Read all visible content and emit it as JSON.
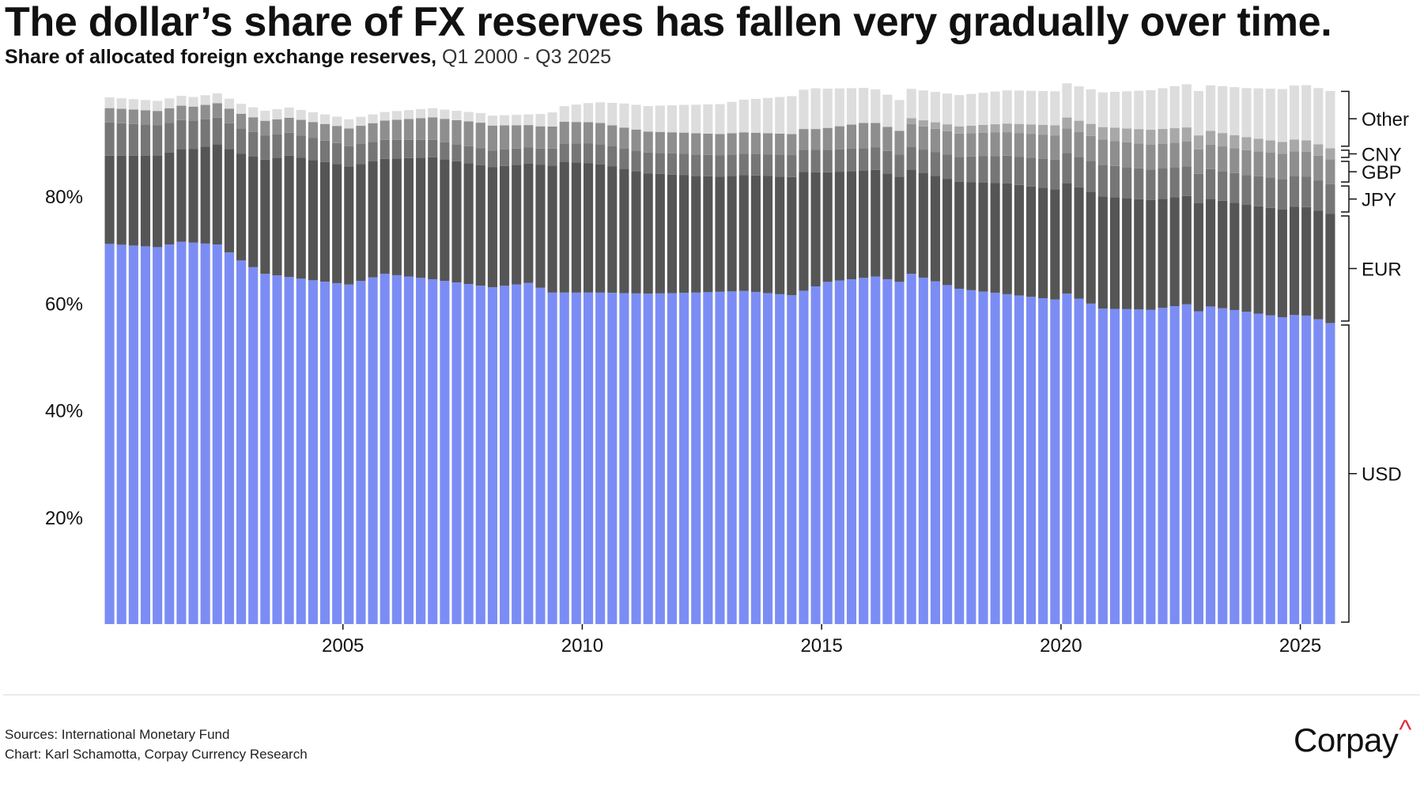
{
  "title": "The dollar’s share of FX reserves has fallen very gradually over time.",
  "subtitle_bold": "Share of allocated foreign exchange reserves,",
  "subtitle_light": "Q1 2000 - Q3 2025",
  "sources_line1": "Sources: International Monetary Fund",
  "sources_line2": "Chart: Karl Schamotta, Corpay Currency Research",
  "logo_text": "Corpay",
  "logo_mark": "^",
  "colors": {
    "USD": "#7b8df5",
    "EUR": "#555555",
    "JPY": "#767676",
    "GBP": "#8e8e8e",
    "CNY": "#a8a8a8",
    "Other": "#dddddd",
    "axis": "#111111",
    "divider": "#dcdcdc",
    "logo_accent": "#e0303e"
  },
  "chart_data": {
    "type": "bar",
    "stacked": true,
    "period": "Q1 2000 - Q3 2025",
    "x_ticks": [
      "2005",
      "2010",
      "2015",
      "2020",
      "2025"
    ],
    "y_ticks": [
      "20%",
      "40%",
      "60%",
      "80%"
    ],
    "ylim": [
      0,
      100
    ],
    "legend_position": "right",
    "series_order": [
      "USD",
      "EUR",
      "JPY",
      "GBP",
      "CNY",
      "Other"
    ],
    "usd_keyframes": [
      [
        "2000Q1",
        71.1
      ],
      [
        "2001Q1",
        70.5
      ],
      [
        "2001Q3",
        71.5
      ],
      [
        "2002Q2",
        71.0
      ],
      [
        "2002Q4",
        68.0
      ],
      [
        "2003Q2",
        65.5
      ],
      [
        "2004Q2",
        64.3
      ],
      [
        "2005Q1",
        63.5
      ],
      [
        "2005Q4",
        65.5
      ],
      [
        "2006Q4",
        64.5
      ],
      [
        "2008Q1",
        63.0
      ],
      [
        "2008Q4",
        63.8
      ],
      [
        "2009Q2",
        62.0
      ],
      [
        "2010Q2",
        62.0
      ],
      [
        "2011Q2",
        61.8
      ],
      [
        "2012Q2",
        62.0
      ],
      [
        "2013Q2",
        62.3
      ],
      [
        "2014Q2",
        61.5
      ],
      [
        "2015Q1",
        64.0
      ],
      [
        "2016Q1",
        65.0
      ],
      [
        "2016Q3",
        64.0
      ],
      [
        "2016Q4",
        65.5
      ],
      [
        "2017Q4",
        62.7
      ],
      [
        "2018Q4",
        61.7
      ],
      [
        "2019Q4",
        60.7
      ],
      [
        "2020Q1",
        61.8
      ],
      [
        "2020Q4",
        59.0
      ],
      [
        "2021Q4",
        58.8
      ],
      [
        "2022Q3",
        59.8
      ],
      [
        "2022Q4",
        58.5
      ],
      [
        "2023Q1",
        59.4
      ],
      [
        "2023Q4",
        58.4
      ],
      [
        "2024Q3",
        57.4
      ],
      [
        "2024Q4",
        57.8
      ],
      [
        "2025Q1",
        57.7
      ],
      [
        "2025Q3",
        56.3
      ]
    ],
    "eur_keyframes": [
      [
        "2000Q1",
        16.5
      ],
      [
        "2001Q4",
        17.5
      ],
      [
        "2002Q4",
        20.0
      ],
      [
        "2003Q4",
        22.7
      ],
      [
        "2004Q4",
        22.3
      ],
      [
        "2005Q4",
        21.5
      ],
      [
        "2006Q4",
        22.8
      ],
      [
        "2008Q4",
        22.3
      ],
      [
        "2009Q3",
        24.5
      ],
      [
        "2010Q2",
        24.0
      ],
      [
        "2011Q2",
        22.5
      ],
      [
        "2012Q4",
        21.5
      ],
      [
        "2014Q3",
        22.2
      ],
      [
        "2015Q1",
        20.5
      ],
      [
        "2016Q4",
        19.5
      ],
      [
        "2017Q4",
        20.0
      ],
      [
        "2018Q4",
        20.7
      ],
      [
        "2019Q4",
        20.6
      ],
      [
        "2020Q4",
        21.0
      ],
      [
        "2021Q4",
        20.5
      ],
      [
        "2022Q4",
        20.2
      ],
      [
        "2023Q4",
        20.0
      ],
      [
        "2025Q3",
        20.4
      ]
    ],
    "jpy_keyframes": [
      [
        "2000Q1",
        6.2
      ],
      [
        "2001Q1",
        5.7
      ],
      [
        "2002Q3",
        4.8
      ],
      [
        "2005Q1",
        3.8
      ],
      [
        "2007Q1",
        3.2
      ],
      [
        "2009Q1",
        3.0
      ],
      [
        "2010Q1",
        3.7
      ],
      [
        "2012Q1",
        4.0
      ],
      [
        "2013Q2",
        4.0
      ],
      [
        "2015Q1",
        4.2
      ],
      [
        "2016Q4",
        4.2
      ],
      [
        "2018Q4",
        5.2
      ],
      [
        "2020Q4",
        5.9
      ],
      [
        "2022Q4",
        5.5
      ],
      [
        "2024Q4",
        5.7
      ],
      [
        "2025Q3",
        5.6
      ]
    ],
    "gbp_keyframes": [
      [
        "2000Q1",
        2.7
      ],
      [
        "2001Q4",
        2.7
      ],
      [
        "2003Q4",
        2.8
      ],
      [
        "2005Q4",
        3.6
      ],
      [
        "2007Q4",
        4.8
      ],
      [
        "2008Q4",
        4.2
      ],
      [
        "2010Q4",
        3.9
      ],
      [
        "2012Q4",
        4.0
      ],
      [
        "2014Q4",
        3.9
      ],
      [
        "2015Q4",
        4.7
      ],
      [
        "2016Q4",
        4.3
      ],
      [
        "2018Q4",
        4.4
      ],
      [
        "2020Q4",
        4.7
      ],
      [
        "2022Q4",
        4.6
      ],
      [
        "2024Q4",
        4.7
      ],
      [
        "2025Q3",
        4.6
      ]
    ],
    "cny_keyframes": [
      [
        "2000Q1",
        0.0
      ],
      [
        "2016Q3",
        0.0
      ],
      [
        "2016Q4",
        1.1
      ],
      [
        "2018Q1",
        1.4
      ],
      [
        "2019Q4",
        1.9
      ],
      [
        "2021Q4",
        2.8
      ],
      [
        "2022Q4",
        2.6
      ],
      [
        "2024Q4",
        2.2
      ],
      [
        "2025Q3",
        2.1
      ]
    ],
    "other_keyframes": [
      [
        "2000Q1",
        2.0
      ],
      [
        "2001Q4",
        1.8
      ],
      [
        "2003Q4",
        1.9
      ],
      [
        "2005Q4",
        1.6
      ],
      [
        "2007Q4",
        1.8
      ],
      [
        "2008Q4",
        2.0
      ],
      [
        "2010Q4",
        4.5
      ],
      [
        "2012Q4",
        5.6
      ],
      [
        "2014Q4",
        7.6
      ],
      [
        "2016Q4",
        5.5
      ],
      [
        "2018Q4",
        6.2
      ],
      [
        "2020Q4",
        6.5
      ],
      [
        "2022Q4",
        8.3
      ],
      [
        "2024Q4",
        10.1
      ],
      [
        "2025Q3",
        10.7
      ]
    ]
  }
}
